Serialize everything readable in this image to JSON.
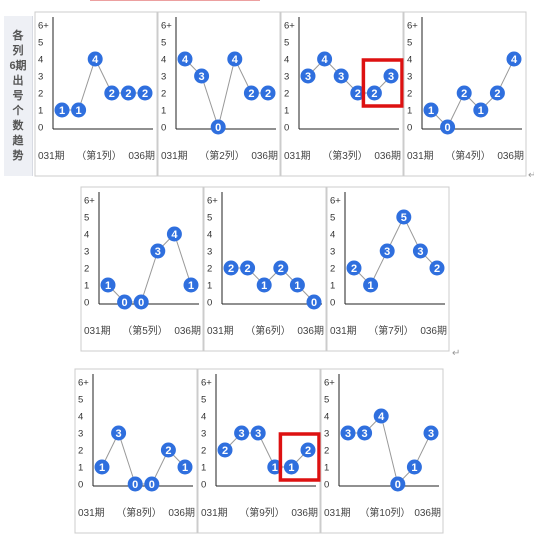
{
  "side_label": [
    "各",
    "列",
    "6期",
    "出",
    "号",
    "个",
    "数",
    "趋",
    "势"
  ],
  "colors": {
    "node": "#2f6fde",
    "line": "#999999",
    "axis": "#222222",
    "highlight": "#dd1111",
    "panel_border": "#cccccc"
  },
  "chart_data": [
    {
      "type": "line",
      "x_start": "031期",
      "x_mid": "（第1列）",
      "x_end": "036期",
      "y_ticks": [
        "0",
        "1",
        "2",
        "3",
        "4",
        "5",
        "6+"
      ],
      "ylim": [
        0,
        6
      ],
      "values": [
        1,
        1,
        4,
        2,
        2,
        2
      ]
    },
    {
      "type": "line",
      "x_start": "031期",
      "x_mid": "（第2列）",
      "x_end": "036期",
      "y_ticks": [
        "0",
        "1",
        "2",
        "3",
        "4",
        "5",
        "6+"
      ],
      "ylim": [
        0,
        6
      ],
      "values": [
        4,
        3,
        0,
        4,
        2,
        2
      ]
    },
    {
      "type": "line",
      "x_start": "031期",
      "x_mid": "（第3列）",
      "x_end": "036期",
      "y_ticks": [
        "0",
        "1",
        "2",
        "3",
        "4",
        "5",
        "6+"
      ],
      "ylim": [
        0,
        6
      ],
      "values": [
        3,
        4,
        3,
        2,
        2,
        3
      ],
      "highlight_points": [
        4,
        5
      ]
    },
    {
      "type": "line",
      "x_start": "031期",
      "x_mid": "（第4列）",
      "x_end": "036期",
      "y_ticks": [
        "0",
        "1",
        "2",
        "3",
        "4",
        "5",
        "6+"
      ],
      "ylim": [
        0,
        6
      ],
      "values": [
        1,
        0,
        2,
        1,
        2,
        4
      ]
    },
    {
      "type": "line",
      "x_start": "031期",
      "x_mid": "（第5列）",
      "x_end": "036期",
      "y_ticks": [
        "0",
        "1",
        "2",
        "3",
        "4",
        "5",
        "6+"
      ],
      "ylim": [
        0,
        6
      ],
      "values": [
        1,
        0,
        0,
        3,
        4,
        1
      ]
    },
    {
      "type": "line",
      "x_start": "031期",
      "x_mid": "（第6列）",
      "x_end": "036期",
      "y_ticks": [
        "0",
        "1",
        "2",
        "3",
        "4",
        "5",
        "6+"
      ],
      "ylim": [
        0,
        6
      ],
      "values": [
        2,
        2,
        1,
        2,
        1,
        0
      ]
    },
    {
      "type": "line",
      "x_start": "031期",
      "x_mid": "（第7列）",
      "x_end": "036期",
      "y_ticks": [
        "0",
        "1",
        "2",
        "3",
        "4",
        "5",
        "6+"
      ],
      "ylim": [
        0,
        6
      ],
      "values": [
        2,
        1,
        3,
        5,
        3,
        2
      ]
    },
    {
      "type": "line",
      "x_start": "031期",
      "x_mid": "（第8列）",
      "x_end": "036期",
      "y_ticks": [
        "0",
        "1",
        "2",
        "3",
        "4",
        "5",
        "6+"
      ],
      "ylim": [
        0,
        6
      ],
      "values": [
        1,
        3,
        0,
        0,
        2,
        1
      ]
    },
    {
      "type": "line",
      "x_start": "031期",
      "x_mid": "（第9列）",
      "x_end": "036期",
      "y_ticks": [
        "0",
        "1",
        "2",
        "3",
        "4",
        "5",
        "6+"
      ],
      "ylim": [
        0,
        6
      ],
      "values": [
        2,
        3,
        3,
        1,
        1,
        2
      ],
      "highlight_points": [
        4,
        5
      ]
    },
    {
      "type": "line",
      "x_start": "031期",
      "x_mid": "（第10列）",
      "x_end": "036期",
      "y_ticks": [
        "0",
        "1",
        "2",
        "3",
        "4",
        "5",
        "6+"
      ],
      "ylim": [
        0,
        6
      ],
      "values": [
        3,
        3,
        4,
        0,
        1,
        3
      ]
    }
  ]
}
